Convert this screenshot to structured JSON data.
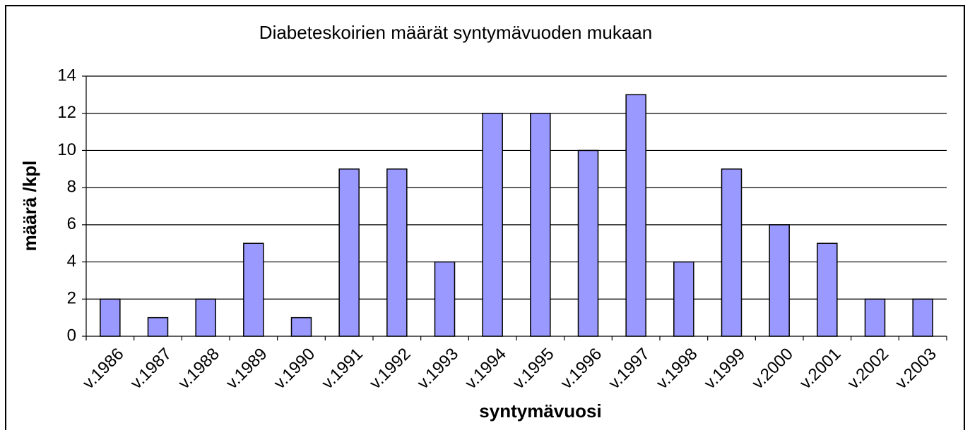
{
  "chart_data": {
    "type": "bar",
    "title": "Diabeteskoirien määrät syntymävuoden mukaan",
    "x_label": "syntymävuosi",
    "y_label": "määrä /kpl",
    "categories": [
      "v.1986",
      "v.1987",
      "v.1988",
      "v.1989",
      "v.1990",
      "v.1991",
      "v.1992",
      "v.1993",
      "v.1994",
      "v.1995",
      "v.1996",
      "v.1997",
      "v.1998",
      "v.1999",
      "v.2000",
      "v.2001",
      "v.2002",
      "v.2003"
    ],
    "values": [
      2,
      1,
      2,
      5,
      1,
      9,
      9,
      4,
      12,
      12,
      10,
      13,
      4,
      9,
      6,
      5,
      2,
      2
    ],
    "color": "#9999ff",
    "ylim": [
      0,
      14
    ],
    "yticks": [
      0,
      2,
      4,
      6,
      8,
      10,
      12,
      14
    ],
    "grid": true
  }
}
